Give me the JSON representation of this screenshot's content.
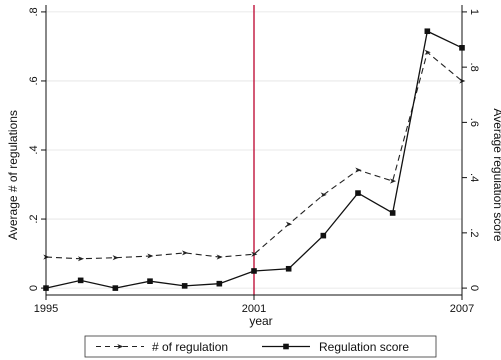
{
  "chart_data": {
    "type": "line",
    "xlabel": "year",
    "ylabel": "Average # of regulations",
    "y2label": "Average regulation score",
    "xlim": [
      1995,
      2007
    ],
    "ylim": [
      -0.02,
      0.82
    ],
    "y2lim": [
      -0.025,
      1.025
    ],
    "x_ticks": [
      "1995",
      "2001",
      "2007"
    ],
    "y_ticks": [
      "0",
      ".2",
      ".4",
      ".6",
      ".8"
    ],
    "y2_ticks": [
      "0",
      ".2",
      ".4",
      ".6",
      ".8",
      "1"
    ],
    "reference_line": {
      "x": 2001,
      "color": "#c0143c"
    },
    "legend_position": "bottom",
    "series": [
      {
        "name": "# of regulation",
        "axis": "left",
        "style": "dashed",
        "marker": "arrow",
        "color": "#222222",
        "x": [
          1995,
          1996,
          1997,
          1998,
          1999,
          2000,
          2001,
          2002,
          2003,
          2004,
          2005,
          2006,
          2007
        ],
        "values": [
          0.09,
          0.085,
          0.088,
          0.093,
          0.102,
          0.09,
          0.098,
          0.185,
          0.27,
          0.342,
          0.31,
          0.683,
          0.6
        ]
      },
      {
        "name": "Regulation score",
        "axis": "right",
        "style": "solid",
        "marker": "square",
        "color": "#111111",
        "x": [
          1995,
          1996,
          1997,
          1998,
          1999,
          2000,
          2001,
          2002,
          2003,
          2004,
          2005,
          2006,
          2007
        ],
        "values": [
          0.0,
          0.028,
          0.0,
          0.025,
          0.008,
          0.016,
          0.062,
          0.07,
          0.19,
          0.344,
          0.272,
          0.93,
          0.87
        ]
      }
    ]
  }
}
